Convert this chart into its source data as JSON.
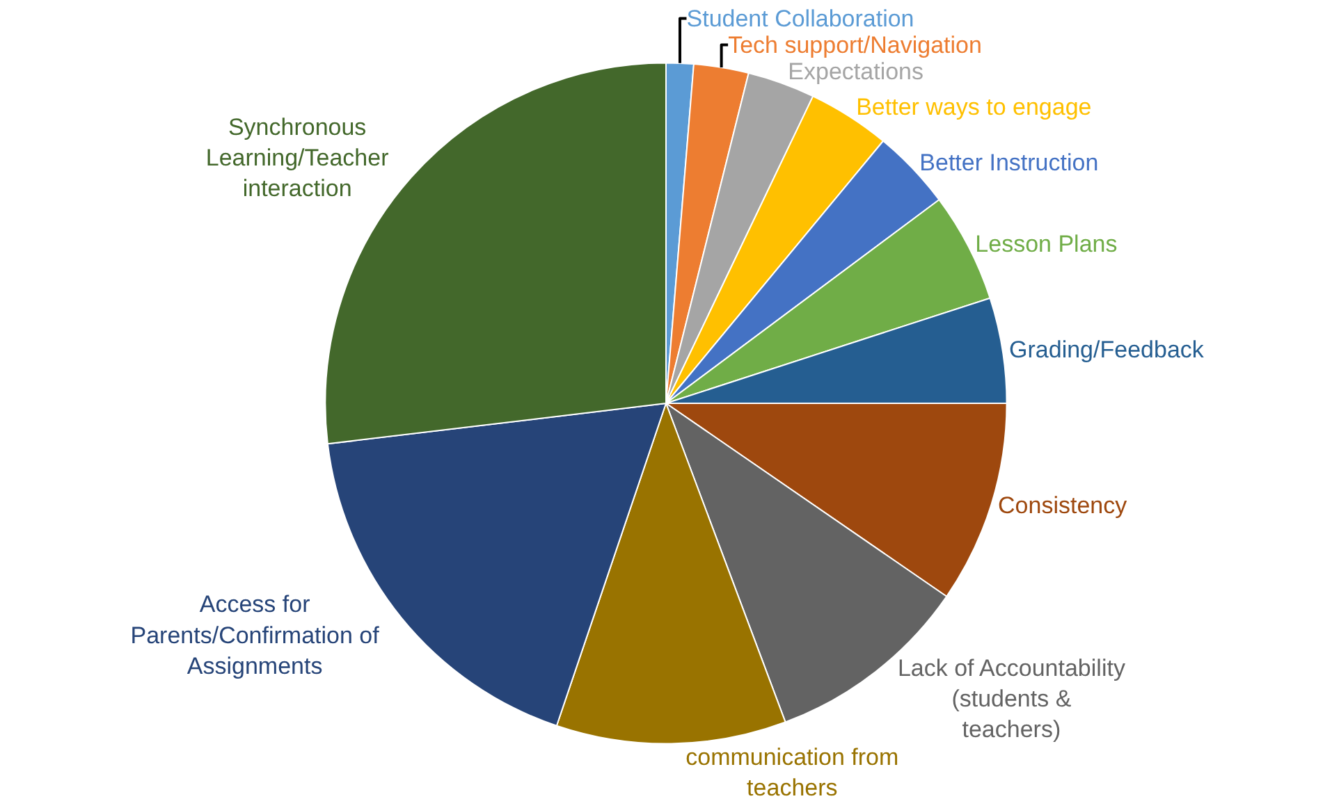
{
  "chart_data": {
    "type": "pie",
    "categories": [
      "Student Collaboration",
      "Tech support/Navigation",
      "Expectations",
      "Better ways to engage",
      "Better Instruction",
      "Lesson Plans",
      "Grading/Feedback",
      "Consistency",
      "Lack of Accountability (students & teachers)",
      "communication from teachers",
      "Access for Parents/Confirmation of Assignments",
      "Synchronous Learning/Teacher interaction"
    ],
    "values": [
      1.3,
      2.6,
      3.2,
      3.9,
      3.8,
      5.2,
      5.0,
      9.6,
      9.7,
      10.9,
      17.9,
      26.9
    ],
    "colors": [
      "#5b9bd5",
      "#ed7d31",
      "#a5a5a5",
      "#ffc000",
      "#4472c4",
      "#70ad47",
      "#255e91",
      "#9e480e",
      "#636363",
      "#997300",
      "#264478",
      "#43682b"
    ],
    "legend": false
  }
}
